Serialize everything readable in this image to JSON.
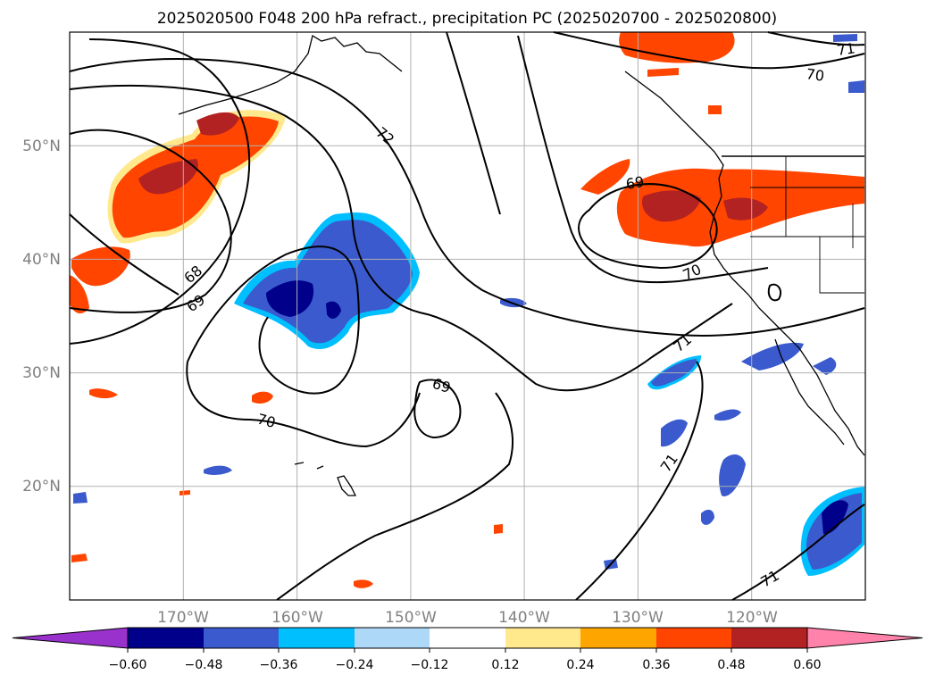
{
  "title": "2025020500 F048 200 hPa refract., precipitation PC (2025020700 - 2025020800)",
  "map": {
    "lon_range": [
      -180,
      -110
    ],
    "lat_range": [
      10,
      60
    ],
    "lat_labels": [
      "50°N",
      "40°N",
      "30°N",
      "20°N"
    ],
    "lon_labels": [
      "170°W",
      "160°W",
      "150°W",
      "140°W",
      "130°W",
      "120°W"
    ],
    "gridlines": true,
    "contour_labels": [
      "72",
      "68",
      "69",
      "70",
      "69",
      "69",
      "70",
      "71",
      "71",
      "70",
      "71",
      "71"
    ]
  },
  "colorbar": {
    "ticks": [
      "−0.60",
      "−0.48",
      "−0.36",
      "−0.24",
      "−0.12",
      "0.12",
      "0.24",
      "0.36",
      "0.48",
      "0.60"
    ],
    "colors": [
      "#9932cc",
      "#00008b",
      "#3a5acd",
      "#00bfff",
      "#add8f7",
      "#ffffff",
      "#ffe98c",
      "#ffa500",
      "#ff4500",
      "#b22222",
      "#ff82ab"
    ]
  }
}
